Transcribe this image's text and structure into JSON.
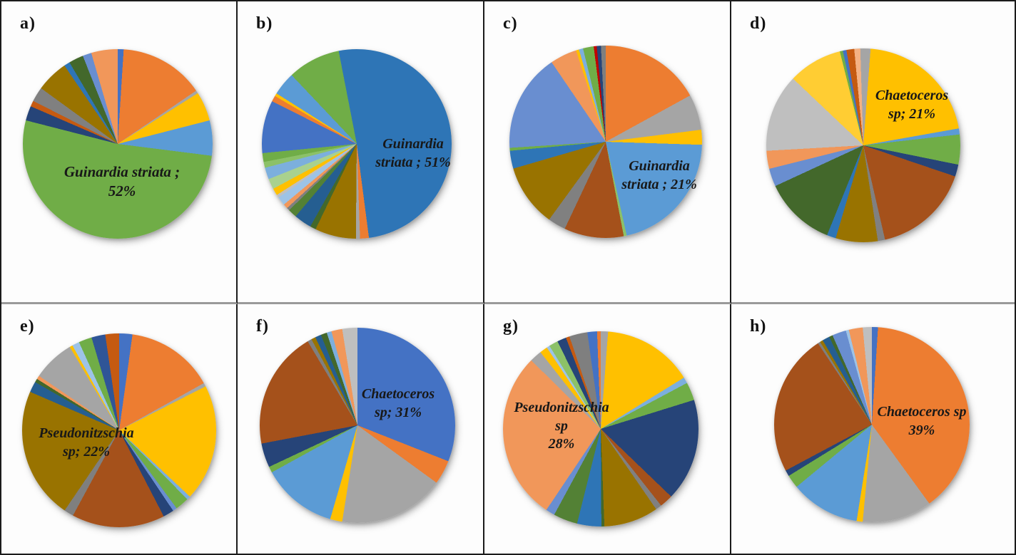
{
  "figure_title": "",
  "chart_data": [
    {
      "type": "pie",
      "panel": "a)",
      "labeled_slice": {
        "name": "Guinardia striata",
        "value_pct": 52
      },
      "label_lines": [
        "Guinardia striata ;",
        "52%"
      ],
      "rotation_deg": 0,
      "slices": [
        {
          "color": "#4472C4",
          "pct": 1
        },
        {
          "color": "#ED7D31",
          "pct": 14.5
        },
        {
          "color": "#A5A5A5",
          "pct": 0.5
        },
        {
          "color": "#FFC000",
          "pct": 5
        },
        {
          "color": "#5B9BD5",
          "pct": 6
        },
        {
          "color": "#70AD47",
          "pct": 52,
          "name": "Guinardia striata"
        },
        {
          "color": "#264478",
          "pct": 2.5
        },
        {
          "color": "#C55A11",
          "pct": 1
        },
        {
          "color": "#808080",
          "pct": 2.5
        },
        {
          "color": "#997300",
          "pct": 5.5
        },
        {
          "color": "#2E75B6",
          "pct": 1
        },
        {
          "color": "#43682B",
          "pct": 2.5
        },
        {
          "color": "#698ED0",
          "pct": 1.5
        },
        {
          "color": "#F1975A",
          "pct": 4.5
        }
      ]
    },
    {
      "type": "pie",
      "panel": "b)",
      "labeled_slice": {
        "name": "Guinardia striata",
        "value_pct": 51
      },
      "label_lines": [
        "Guinardia",
        "striata ; 51%"
      ],
      "rotation_deg": -11,
      "slices": [
        {
          "color": "#2E75B6",
          "pct": 51,
          "name": "Guinardia striata"
        },
        {
          "color": "#ED7D31",
          "pct": 1.5
        },
        {
          "color": "#A5A5A5",
          "pct": 0.7
        },
        {
          "color": "#997300",
          "pct": 7
        },
        {
          "color": "#43682B",
          "pct": 1
        },
        {
          "color": "#255E91",
          "pct": 3
        },
        {
          "color": "#538135",
          "pct": 1.5
        },
        {
          "color": "#7F7F7F",
          "pct": 0.5
        },
        {
          "color": "#F1975A",
          "pct": 0.8
        },
        {
          "color": "#9DC3E6",
          "pct": 1.5
        },
        {
          "color": "#BFBFBF",
          "pct": 0.5
        },
        {
          "color": "#FFC000",
          "pct": 1.2
        },
        {
          "color": "#A9D18E",
          "pct": 1.8
        },
        {
          "color": "#7CAFDD",
          "pct": 2
        },
        {
          "color": "#8CC168",
          "pct": 1
        },
        {
          "color": "#70AD47",
          "pct": 1.5
        },
        {
          "color": "#4472C4",
          "pct": 9
        },
        {
          "color": "#ED7D31",
          "pct": 1
        },
        {
          "color": "#FFC000",
          "pct": 0.5
        },
        {
          "color": "#5B9BD5",
          "pct": 4
        },
        {
          "color": "#70AD47",
          "pct": 9
        }
      ]
    },
    {
      "type": "pie",
      "panel": "c)",
      "labeled_slice": {
        "name": "Guinardia striata",
        "value_pct": 21
      },
      "label_lines": [
        "Guinardia",
        "striata ; 21%"
      ],
      "rotation_deg": 0,
      "slices": [
        {
          "color": "#ED7D31",
          "pct": 17
        },
        {
          "color": "#A5A5A5",
          "pct": 6
        },
        {
          "color": "#FFC000",
          "pct": 2.5
        },
        {
          "color": "#5B9BD5",
          "pct": 21,
          "name": "Guinardia striata"
        },
        {
          "color": "#8CC168",
          "pct": 0.5
        },
        {
          "color": "#A5511B",
          "pct": 10
        },
        {
          "color": "#808080",
          "pct": 3
        },
        {
          "color": "#997300",
          "pct": 10.5
        },
        {
          "color": "#2E75B6",
          "pct": 3
        },
        {
          "color": "#70AD47",
          "pct": 0.5
        },
        {
          "color": "#698ED0",
          "pct": 16.5
        },
        {
          "color": "#F1975A",
          "pct": 4.5
        },
        {
          "color": "#FFC000",
          "pct": 0.5
        },
        {
          "color": "#7CAFDD",
          "pct": 0.7
        },
        {
          "color": "#70AD47",
          "pct": 1.8
        },
        {
          "color": "#C00000",
          "pct": 0.5
        },
        {
          "color": "#264478",
          "pct": 0.7
        },
        {
          "color": "#7F7F7F",
          "pct": 0.8
        }
      ]
    },
    {
      "type": "pie",
      "panel": "d)",
      "labeled_slice": {
        "name": "Chaetoceros sp",
        "value_pct": 21
      },
      "label_lines": [
        "Chaetoceros",
        "sp; 21%"
      ],
      "rotation_deg": 0,
      "slices": [
        {
          "color": "#A5A5A5",
          "pct": 1.2
        },
        {
          "color": "#FFC000",
          "pct": 21,
          "name": "Chaetoceros sp"
        },
        {
          "color": "#5B9BD5",
          "pct": 1
        },
        {
          "color": "#70AD47",
          "pct": 5
        },
        {
          "color": "#264478",
          "pct": 2
        },
        {
          "color": "#A5511B",
          "pct": 16.2
        },
        {
          "color": "#808080",
          "pct": 1.2
        },
        {
          "color": "#997300",
          "pct": 7
        },
        {
          "color": "#2E75B6",
          "pct": 1.5
        },
        {
          "color": "#43682B",
          "pct": 12
        },
        {
          "color": "#698ED0",
          "pct": 3
        },
        {
          "color": "#F1975A",
          "pct": 3
        },
        {
          "color": "#BFBFBF",
          "pct": 13
        },
        {
          "color": "#FFCD33",
          "pct": 9
        },
        {
          "color": "#70AD47",
          "pct": 0.5
        },
        {
          "color": "#4472C4",
          "pct": 0.6
        },
        {
          "color": "#C55A11",
          "pct": 1.3
        },
        {
          "color": "#F4B183",
          "pct": 1
        },
        {
          "color": "#A5A5A5",
          "pct": 0.5
        }
      ]
    },
    {
      "type": "pie",
      "panel": "e)",
      "labeled_slice": {
        "name": "Pseudonitzschia sp",
        "value_pct": 22
      },
      "label_lines": [
        "Pseudonitzschia",
        "sp; 22%"
      ],
      "rotation_deg": 0,
      "slices": [
        {
          "color": "#4472C4",
          "pct": 2.2
        },
        {
          "color": "#ED7D31",
          "pct": 14.7
        },
        {
          "color": "#A5A5A5",
          "pct": 0.6
        },
        {
          "color": "#FFC000",
          "pct": 19.5
        },
        {
          "color": "#7CAFDD",
          "pct": 0.6
        },
        {
          "color": "#70AD47",
          "pct": 2.3
        },
        {
          "color": "#698ED0",
          "pct": 0.7
        },
        {
          "color": "#264478",
          "pct": 1.8
        },
        {
          "color": "#A5511B",
          "pct": 15.5
        },
        {
          "color": "#7F7F7F",
          "pct": 1.6
        },
        {
          "color": "#997300",
          "pct": 22,
          "name": "Pseudonitzschia sp"
        },
        {
          "color": "#255E91",
          "pct": 1.8
        },
        {
          "color": "#43682B",
          "pct": 0.6
        },
        {
          "color": "#F1975A",
          "pct": 0.6
        },
        {
          "color": "#A5A5A5",
          "pct": 7
        },
        {
          "color": "#FFC000",
          "pct": 0.5
        },
        {
          "color": "#9DC3E6",
          "pct": 1.2
        },
        {
          "color": "#70AD47",
          "pct": 2.2
        },
        {
          "color": "#2F5597",
          "pct": 2.3
        },
        {
          "color": "#C55A11",
          "pct": 2.3
        }
      ]
    },
    {
      "type": "pie",
      "panel": "f)",
      "labeled_slice": {
        "name": "Chaetoceros sp",
        "value_pct": 31
      },
      "label_lines": [
        "Chaetoceros",
        "sp; 31%"
      ],
      "rotation_deg": 0,
      "slices": [
        {
          "color": "#4472C4",
          "pct": 31,
          "name": "Chaetoceros sp"
        },
        {
          "color": "#ED7D31",
          "pct": 4
        },
        {
          "color": "#A5A5A5",
          "pct": 17.5
        },
        {
          "color": "#FFC000",
          "pct": 2
        },
        {
          "color": "#5B9BD5",
          "pct": 12.5
        },
        {
          "color": "#70AD47",
          "pct": 1
        },
        {
          "color": "#264478",
          "pct": 4
        },
        {
          "color": "#A5511B",
          "pct": 19.5
        },
        {
          "color": "#7F7F7F",
          "pct": 0.7
        },
        {
          "color": "#997300",
          "pct": 0.7
        },
        {
          "color": "#255E91",
          "pct": 1
        },
        {
          "color": "#43682B",
          "pct": 1
        },
        {
          "color": "#7CAFDD",
          "pct": 0.8
        },
        {
          "color": "#F1975A",
          "pct": 1.8
        },
        {
          "color": "#BFBFBF",
          "pct": 2.5
        }
      ]
    },
    {
      "type": "pie",
      "panel": "g)",
      "labeled_slice": {
        "name": "Pseudonitzschia sp",
        "value_pct": 28
      },
      "label_lines": [
        "Pseudonitzschia",
        "sp",
        "28%"
      ],
      "rotation_deg": 0,
      "slices": [
        {
          "color": "#A5A5A5",
          "pct": 1.2
        },
        {
          "color": "#FFC000",
          "pct": 15
        },
        {
          "color": "#7CAFDD",
          "pct": 1
        },
        {
          "color": "#70AD47",
          "pct": 3
        },
        {
          "color": "#264478",
          "pct": 17,
          "name": ""
        },
        {
          "color": "#A5511B",
          "pct": 2.2
        },
        {
          "color": "#808080",
          "pct": 1
        },
        {
          "color": "#997300",
          "pct": 9
        },
        {
          "color": "#43682B",
          "pct": 0.5
        },
        {
          "color": "#2E75B6",
          "pct": 4
        },
        {
          "color": "#538135",
          "pct": 4
        },
        {
          "color": "#698ED0",
          "pct": 1.5
        },
        {
          "color": "#F1975A",
          "pct": 28,
          "name": "Pseudonitzschia sp"
        },
        {
          "color": "#A5A5A5",
          "pct": 2
        },
        {
          "color": "#FFC000",
          "pct": 1.3
        },
        {
          "color": "#9DC3E6",
          "pct": 0.5
        },
        {
          "color": "#8CC168",
          "pct": 1.5
        },
        {
          "color": "#264478",
          "pct": 1.5
        },
        {
          "color": "#C55A11",
          "pct": 0.6
        },
        {
          "color": "#7F7F7F",
          "pct": 3
        },
        {
          "color": "#4472C4",
          "pct": 1.6
        },
        {
          "color": "#ED7D31",
          "pct": 0.6
        }
      ]
    },
    {
      "type": "pie",
      "panel": "h)",
      "labeled_slice": {
        "name": "Chaetoceros sp",
        "value_pct": 39
      },
      "label_lines": [
        "Chaetoceros sp",
        "39%"
      ],
      "rotation_deg": 0,
      "slices": [
        {
          "color": "#4472C4",
          "pct": 1
        },
        {
          "color": "#ED7D31",
          "pct": 39,
          "name": "Chaetoceros sp"
        },
        {
          "color": "#A5A5A5",
          "pct": 11.5
        },
        {
          "color": "#FFC000",
          "pct": 1
        },
        {
          "color": "#5B9BD5",
          "pct": 11.5
        },
        {
          "color": "#70AD47",
          "pct": 2.2
        },
        {
          "color": "#264478",
          "pct": 1
        },
        {
          "color": "#A5511B",
          "pct": 23.5
        },
        {
          "color": "#7F7F7F",
          "pct": 0.4
        },
        {
          "color": "#997300",
          "pct": 0.5
        },
        {
          "color": "#255E91",
          "pct": 1.2
        },
        {
          "color": "#43682B",
          "pct": 0.6
        },
        {
          "color": "#698ED0",
          "pct": 2.3
        },
        {
          "color": "#9DC3E6",
          "pct": 0.5
        },
        {
          "color": "#F1975A",
          "pct": 2.3
        },
        {
          "color": "#BFBFBF",
          "pct": 1.5
        }
      ]
    }
  ]
}
